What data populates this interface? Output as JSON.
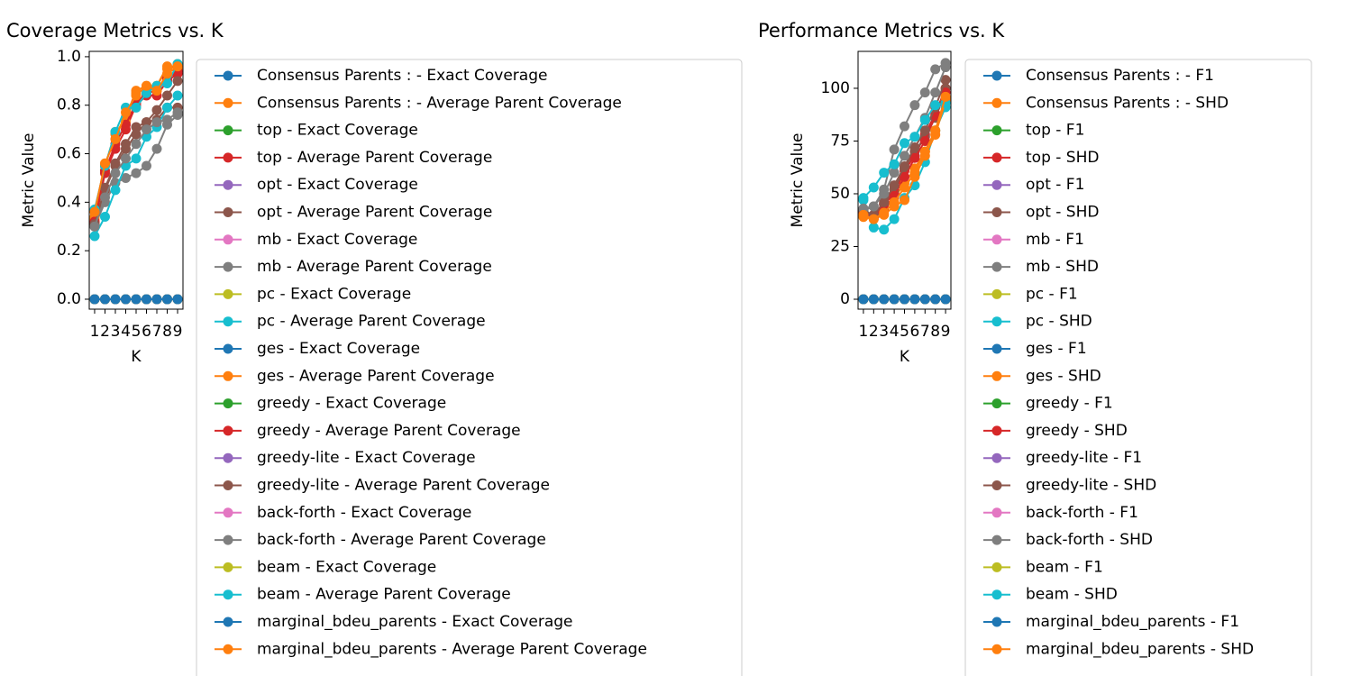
{
  "chart_data": [
    {
      "type": "line",
      "title": "Coverage Metrics vs. K",
      "xlabel": "K",
      "ylabel": "Metric Value",
      "x": [
        1,
        2,
        3,
        4,
        5,
        6,
        7,
        8,
        9
      ],
      "xlim": [
        0.48,
        9.52
      ],
      "xticks": [
        1,
        2,
        3,
        4,
        5,
        6,
        7,
        8,
        9
      ],
      "ylim": [
        -0.041,
        1.022
      ],
      "yticks": [
        {
          "value": 0,
          "label": "0.0"
        },
        0.2,
        0.4,
        0.6,
        0.8,
        {
          "value": 1,
          "label": "1.0"
        }
      ],
      "series": [
        {
          "name": "Consensus Parents : - Exact Coverage",
          "color": "#1f77b4",
          "values": [
            0,
            0,
            0,
            0,
            0,
            0,
            0,
            0,
            0
          ]
        },
        {
          "name": "Consensus Parents : - Average Parent Coverage",
          "color": "#ff7f0e",
          "values": [
            0.33,
            0.55,
            0.68,
            0.75,
            0.86,
            0.88,
            0.88,
            0.95,
            0.97
          ]
        },
        {
          "name": "top - Exact Coverage",
          "color": "#2ca02c",
          "values": [
            0,
            0,
            0,
            0,
            0,
            0,
            0,
            0,
            0
          ]
        },
        {
          "name": "top - Average Parent Coverage",
          "color": "#d62728",
          "values": [
            0.31,
            0.52,
            0.62,
            0.7,
            0.8,
            0.84,
            0.84,
            0.9,
            0.93
          ]
        },
        {
          "name": "opt - Exact Coverage",
          "color": "#9467bd",
          "values": [
            0,
            0,
            0,
            0,
            0,
            0,
            0,
            0,
            0
          ]
        },
        {
          "name": "opt - Average Parent Coverage",
          "color": "#8c564b",
          "values": [
            0.3,
            0.45,
            0.55,
            0.62,
            0.68,
            0.73,
            0.74,
            0.79,
            0.79
          ]
        },
        {
          "name": "mb - Exact Coverage",
          "color": "#e377c2",
          "values": [
            0,
            0,
            0,
            0,
            0,
            0,
            0,
            0,
            0
          ]
        },
        {
          "name": "mb - Average Parent Coverage",
          "color": "#7f7f7f",
          "values": [
            0.3,
            0.4,
            0.48,
            0.5,
            0.52,
            0.55,
            0.62,
            0.72,
            0.76
          ]
        },
        {
          "name": "pc - Exact Coverage",
          "color": "#bcbd22",
          "values": [
            0,
            0,
            0,
            0,
            0,
            0,
            0,
            0,
            0
          ]
        },
        {
          "name": "pc - Average Parent Coverage",
          "color": "#17becf",
          "values": [
            0.26,
            0.34,
            0.45,
            0.55,
            0.58,
            0.67,
            0.71,
            0.79,
            0.84
          ]
        },
        {
          "name": "ges - Exact Coverage",
          "color": "#1f77b4",
          "values": [
            0,
            0,
            0,
            0,
            0,
            0,
            0,
            0,
            0
          ]
        },
        {
          "name": "ges - Average Parent Coverage",
          "color": "#ff7f0e",
          "values": [
            0.34,
            0.55,
            0.69,
            0.73,
            0.85,
            0.87,
            0.88,
            0.96,
            0.95
          ]
        },
        {
          "name": "greedy - Exact Coverage",
          "color": "#2ca02c",
          "values": [
            0,
            0,
            0,
            0,
            0,
            0,
            0,
            0,
            0
          ]
        },
        {
          "name": "greedy - Average Parent Coverage",
          "color": "#d62728",
          "values": [
            0.32,
            0.53,
            0.64,
            0.72,
            0.81,
            0.85,
            0.86,
            0.91,
            0.94
          ]
        },
        {
          "name": "greedy-lite - Exact Coverage",
          "color": "#9467bd",
          "values": [
            0,
            0,
            0,
            0,
            0,
            0,
            0,
            0,
            0
          ]
        },
        {
          "name": "greedy-lite - Average Parent Coverage",
          "color": "#8c564b",
          "values": [
            0.31,
            0.46,
            0.56,
            0.64,
            0.71,
            0.73,
            0.78,
            0.84,
            0.9
          ]
        },
        {
          "name": "back-forth - Exact Coverage",
          "color": "#e377c2",
          "values": [
            0,
            0,
            0,
            0,
            0,
            0,
            0,
            0,
            0
          ]
        },
        {
          "name": "back-forth - Average Parent Coverage",
          "color": "#7f7f7f",
          "values": [
            0.3,
            0.42,
            0.52,
            0.58,
            0.64,
            0.7,
            0.73,
            0.74,
            0.77
          ]
        },
        {
          "name": "beam - Exact Coverage",
          "color": "#bcbd22",
          "values": [
            0,
            0,
            0,
            0,
            0,
            0,
            0,
            0,
            0
          ]
        },
        {
          "name": "beam - Average Parent Coverage",
          "color": "#17becf",
          "values": [
            0.37,
            0.55,
            0.69,
            0.79,
            0.79,
            0.85,
            0.88,
            0.89,
            0.97
          ]
        },
        {
          "name": "marginal_bdeu_parents - Exact Coverage",
          "color": "#1f77b4",
          "values": [
            0,
            0,
            0,
            0,
            0,
            0,
            0,
            0,
            0
          ]
        },
        {
          "name": "marginal_bdeu_parents - Average Parent Coverage",
          "color": "#ff7f0e",
          "values": [
            0.36,
            0.56,
            0.66,
            0.77,
            0.84,
            0.88,
            0.86,
            0.93,
            0.96
          ]
        }
      ]
    },
    {
      "type": "line",
      "title": "Performance Metrics vs. K",
      "xlabel": "K",
      "ylabel": "Metric Value",
      "x": [
        1,
        2,
        3,
        4,
        5,
        6,
        7,
        8,
        9
      ],
      "xlim": [
        0.48,
        9.52
      ],
      "xticks": [
        1,
        2,
        3,
        4,
        5,
        6,
        7,
        8,
        9
      ],
      "ylim": [
        -4.7,
        117.5
      ],
      "yticks": [
        0,
        25,
        50,
        75,
        100
      ],
      "series": [
        {
          "name": "Consensus Parents : - F1",
          "color": "#1f77b4",
          "values": [
            0,
            0,
            0,
            0,
            0,
            0,
            0,
            0,
            0
          ]
        },
        {
          "name": "Consensus Parents : - SHD",
          "color": "#ff7f0e",
          "values": [
            40,
            38,
            42,
            48,
            55,
            62,
            70,
            80,
            95
          ]
        },
        {
          "name": "top - F1",
          "color": "#2ca02c",
          "values": [
            0,
            0,
            0,
            0,
            0,
            0,
            0,
            0,
            0
          ]
        },
        {
          "name": "top - SHD",
          "color": "#d62728",
          "values": [
            40,
            39,
            45,
            50,
            61,
            68,
            78,
            88,
            100
          ]
        },
        {
          "name": "opt - F1",
          "color": "#9467bd",
          "values": [
            0,
            0,
            0,
            0,
            0,
            0,
            0,
            0,
            0
          ]
        },
        {
          "name": "opt - SHD",
          "color": "#8c564b",
          "values": [
            41,
            40,
            45,
            52,
            62,
            70,
            77,
            86,
            100
          ]
        },
        {
          "name": "mb - F1",
          "color": "#e377c2",
          "values": [
            0,
            0,
            0,
            0,
            0,
            0,
            0,
            0,
            0
          ]
        },
        {
          "name": "mb - SHD",
          "color": "#7f7f7f",
          "values": [
            42,
            44,
            52,
            71,
            82,
            92,
            98,
            109,
            112
          ]
        },
        {
          "name": "pc - F1",
          "color": "#bcbd22",
          "values": [
            0,
            0,
            0,
            0,
            0,
            0,
            0,
            0,
            0
          ]
        },
        {
          "name": "pc - SHD",
          "color": "#17becf",
          "values": [
            47,
            34,
            33,
            38,
            48,
            54,
            65,
            80,
            91
          ]
        },
        {
          "name": "ges - F1",
          "color": "#1f77b4",
          "values": [
            0,
            0,
            0,
            0,
            0,
            0,
            0,
            0,
            0
          ]
        },
        {
          "name": "ges - SHD",
          "color": "#ff7f0e",
          "values": [
            39,
            38,
            40,
            44,
            47,
            58,
            68,
            78,
            94
          ]
        },
        {
          "name": "greedy - F1",
          "color": "#2ca02c",
          "values": [
            0,
            0,
            0,
            0,
            0,
            0,
            0,
            0,
            0
          ]
        },
        {
          "name": "greedy - SHD",
          "color": "#d62728",
          "values": [
            41,
            39,
            43,
            49,
            58,
            67,
            75,
            87,
            98
          ]
        },
        {
          "name": "greedy-lite - F1",
          "color": "#9467bd",
          "values": [
            0,
            0,
            0,
            0,
            0,
            0,
            0,
            0,
            0
          ]
        },
        {
          "name": "greedy-lite - SHD",
          "color": "#8c564b",
          "values": [
            42,
            40,
            46,
            54,
            63,
            72,
            80,
            91,
            104
          ]
        },
        {
          "name": "back-forth - F1",
          "color": "#e377c2",
          "values": [
            0,
            0,
            0,
            0,
            0,
            0,
            0,
            0,
            0
          ]
        },
        {
          "name": "back-forth - SHD",
          "color": "#7f7f7f",
          "values": [
            43,
            44,
            50,
            60,
            68,
            77,
            86,
            98,
            110
          ]
        },
        {
          "name": "beam - F1",
          "color": "#bcbd22",
          "values": [
            0,
            0,
            0,
            0,
            0,
            0,
            0,
            0,
            0
          ]
        },
        {
          "name": "beam - SHD",
          "color": "#17becf",
          "values": [
            48,
            53,
            60,
            64,
            74,
            77,
            85,
            92,
            93
          ]
        },
        {
          "name": "marginal_bdeu_parents - F1",
          "color": "#1f77b4",
          "values": [
            0,
            0,
            0,
            0,
            0,
            0,
            0,
            0,
            0
          ]
        },
        {
          "name": "marginal_bdeu_parents - SHD",
          "color": "#ff7f0e",
          "values": [
            40,
            38,
            41,
            46,
            53,
            60,
            70,
            80,
            96
          ]
        }
      ]
    }
  ]
}
